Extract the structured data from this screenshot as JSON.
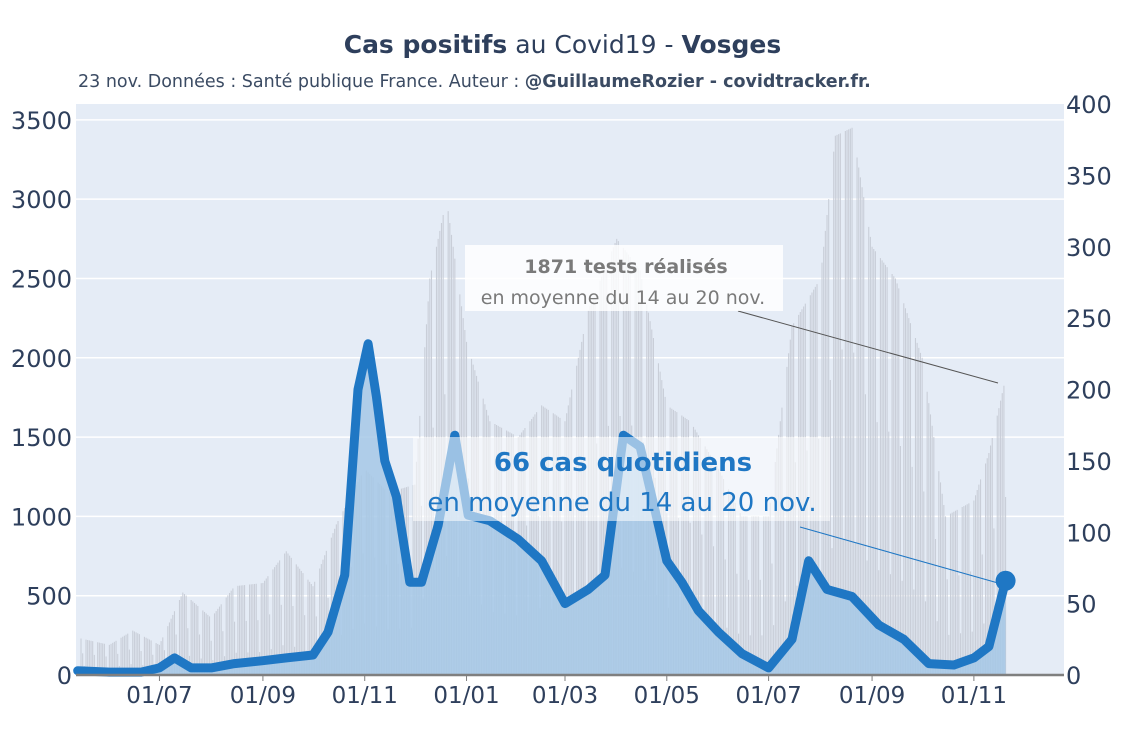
{
  "header": {
    "title_bold": "Cas positifs",
    "title_mid": " au Covid19 - ",
    "title_region": "Vosges",
    "subtitle_pre": "23 nov. Données : Santé publique France. Auteur : ",
    "subtitle_bold": "@GuillaumeRozier - covidtracker.fr."
  },
  "annotations": {
    "tests_value": "1871 tests réalisés",
    "tests_sub": "en moyenne du 14 au 20 nov.",
    "cases_value": "66 cas quotidiens",
    "cases_sub": "en moyenne du 14 au 20 nov."
  },
  "colors": {
    "plot_bg": "#e5ecf6",
    "cases_line": "#1f77c4",
    "cases_fill": "#a6c8e6",
    "tests_bars": "#c9ced8",
    "text": "#2e3f5c"
  },
  "chart_data": {
    "type": "line",
    "x_tick_labels": [
      "01/07",
      "01/09",
      "01/11",
      "01/01",
      "01/03",
      "01/05",
      "01/07",
      "01/09",
      "01/11"
    ],
    "y_left": {
      "ticks": [
        0,
        500,
        1000,
        1500,
        2000,
        2500,
        3000,
        3500
      ],
      "range": [
        0,
        3600
      ]
    },
    "y_right": {
      "ticks": [
        0,
        50,
        100,
        150,
        200,
        250,
        300,
        350,
        400
      ],
      "range": [
        0,
        400
      ]
    },
    "grid": true,
    "series": [
      {
        "axis": "left",
        "style": "bars",
        "points": [
          [
            "2020-05-15",
            230
          ],
          [
            "2020-06-01",
            190
          ],
          [
            "2020-06-15",
            280
          ],
          [
            "2020-07-01",
            190
          ],
          [
            "2020-07-15",
            520
          ],
          [
            "2020-08-01",
            360
          ],
          [
            "2020-08-15",
            560
          ],
          [
            "2020-09-01",
            580
          ],
          [
            "2020-09-15",
            780
          ],
          [
            "2020-10-01",
            560
          ],
          [
            "2020-10-15",
            950
          ],
          [
            "2020-11-01",
            1300
          ],
          [
            "2020-11-15",
            1150
          ],
          [
            "2020-12-01",
            1200
          ],
          [
            "2020-12-10",
            2500
          ],
          [
            "2020-12-20",
            3000
          ],
          [
            "2021-01-01",
            2100
          ],
          [
            "2021-01-15",
            1600
          ],
          [
            "2021-02-01",
            1500
          ],
          [
            "2021-02-15",
            1700
          ],
          [
            "2021-03-01",
            1600
          ],
          [
            "2021-03-15",
            2300
          ],
          [
            "2021-04-01",
            2750
          ],
          [
            "2021-04-15",
            2550
          ],
          [
            "2021-05-01",
            1700
          ],
          [
            "2021-05-15",
            1600
          ],
          [
            "2021-06-01",
            1300
          ],
          [
            "2021-06-15",
            1000
          ],
          [
            "2021-07-01",
            1000
          ],
          [
            "2021-07-15",
            2200
          ],
          [
            "2021-08-01",
            2500
          ],
          [
            "2021-08-10",
            3400
          ],
          [
            "2021-08-20",
            3450
          ],
          [
            "2021-09-01",
            2700
          ],
          [
            "2021-09-15",
            2500
          ],
          [
            "2021-10-01",
            2000
          ],
          [
            "2021-10-15",
            1000
          ],
          [
            "2021-11-01",
            1100
          ],
          [
            "2021-11-10",
            1400
          ],
          [
            "2021-11-20",
            1871
          ]
        ]
      },
      {
        "axis": "right",
        "style": "line",
        "points": [
          [
            "2020-05-13",
            3
          ],
          [
            "2020-06-01",
            2
          ],
          [
            "2020-06-20",
            2
          ],
          [
            "2020-07-01",
            5
          ],
          [
            "2020-07-10",
            12
          ],
          [
            "2020-07-20",
            5
          ],
          [
            "2020-08-01",
            5
          ],
          [
            "2020-08-15",
            8
          ],
          [
            "2020-09-01",
            10
          ],
          [
            "2020-09-15",
            12
          ],
          [
            "2020-10-01",
            14
          ],
          [
            "2020-10-10",
            30
          ],
          [
            "2020-10-20",
            70
          ],
          [
            "2020-10-28",
            200
          ],
          [
            "2020-11-03",
            232
          ],
          [
            "2020-11-08",
            195
          ],
          [
            "2020-11-13",
            150
          ],
          [
            "2020-11-20",
            125
          ],
          [
            "2020-11-28",
            65
          ],
          [
            "2020-12-05",
            65
          ],
          [
            "2020-12-15",
            105
          ],
          [
            "2020-12-25",
            168
          ],
          [
            "2021-01-02",
            112
          ],
          [
            "2021-01-15",
            108
          ],
          [
            "2021-02-01",
            95
          ],
          [
            "2021-02-15",
            80
          ],
          [
            "2021-03-01",
            50
          ],
          [
            "2021-03-15",
            60
          ],
          [
            "2021-03-25",
            70
          ],
          [
            "2021-04-05",
            168
          ],
          [
            "2021-04-15",
            160
          ],
          [
            "2021-05-01",
            80
          ],
          [
            "2021-05-10",
            65
          ],
          [
            "2021-05-20",
            45
          ],
          [
            "2021-06-01",
            30
          ],
          [
            "2021-06-15",
            15
          ],
          [
            "2021-07-01",
            5
          ],
          [
            "2021-07-15",
            25
          ],
          [
            "2021-07-25",
            80
          ],
          [
            "2021-08-05",
            60
          ],
          [
            "2021-08-20",
            55
          ],
          [
            "2021-09-05",
            35
          ],
          [
            "2021-09-20",
            25
          ],
          [
            "2021-10-05",
            8
          ],
          [
            "2021-10-20",
            7
          ],
          [
            "2021-11-01",
            12
          ],
          [
            "2021-11-10",
            20
          ],
          [
            "2021-11-20",
            66
          ]
        ]
      }
    ]
  }
}
